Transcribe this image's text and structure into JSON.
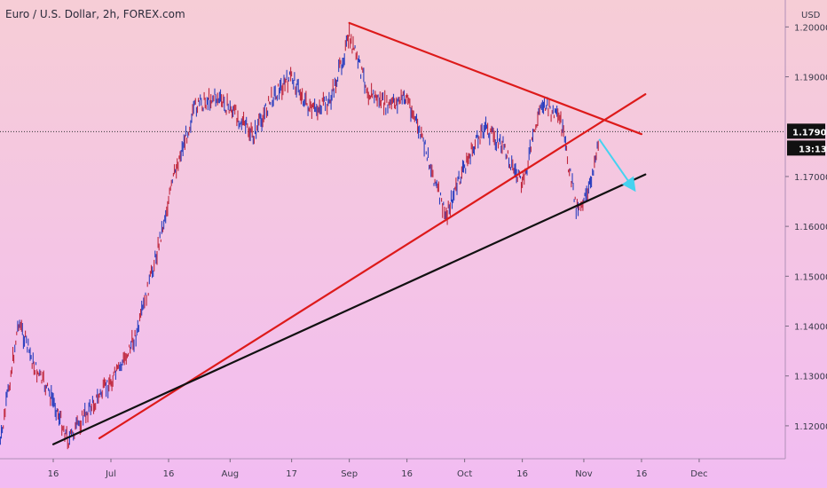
{
  "chart_data": {
    "type": "line",
    "title": "Euro / U.S. Dollar, 2h, FOREX.com",
    "currency": "USD",
    "x_ticks": [
      "16",
      "Jul",
      "16",
      "Aug",
      "17",
      "Sep",
      "16",
      "Oct",
      "16",
      "Nov",
      "16",
      "Dec"
    ],
    "y_ticks": [
      "1.20000",
      "1.19000",
      "1.17900",
      "1.17000",
      "1.16000",
      "1.15000",
      "1.14000",
      "1.13000",
      "1.12000"
    ],
    "ylim": [
      1.1134,
      1.2054
    ],
    "price_level": "1.17900",
    "countdown": "13:13",
    "grid": false,
    "series": [
      {
        "x": [
          "Jun 02",
          "Jun 07",
          "Jun 11",
          "Jun 16",
          "Jun 20",
          "Jun 24",
          "Jun 28",
          "Jul 03",
          "Jul 08",
          "Jul 13",
          "Jul 18",
          "Jul 23",
          "Jul 28",
          "Aug 02",
          "Aug 07",
          "Aug 12",
          "Aug 17",
          "Aug 22",
          "Aug 27",
          "Sep 01",
          "Sep 06",
          "Sep 11",
          "Sep 16",
          "Sep 21",
          "Sep 26",
          "Oct 01",
          "Oct 06",
          "Oct 11",
          "Oct 16",
          "Oct 21",
          "Oct 26",
          "Oct 30",
          "Nov 02",
          "Nov 05"
        ],
        "values": [
          1.115,
          1.141,
          1.132,
          1.125,
          1.117,
          1.122,
          1.126,
          1.131,
          1.139,
          1.155,
          1.172,
          1.184,
          1.186,
          1.183,
          1.178,
          1.186,
          1.19,
          1.183,
          1.185,
          1.198,
          1.187,
          1.184,
          1.186,
          1.175,
          1.162,
          1.172,
          1.18,
          1.176,
          1.168,
          1.185,
          1.181,
          1.164,
          1.166,
          1.178
        ]
      }
    ],
    "lines": [
      {
        "from": [
          "Sep 01",
          1.2008
        ],
        "to": [
          "Nov 16",
          1.1785
        ],
        "color": "#dd1a1a"
      },
      {
        "from": [
          "Jun 28",
          1.1175
        ],
        "to": [
          "Nov 17",
          1.1865
        ],
        "color": "#dd1a1a"
      },
      {
        "from": [
          "Jun 16",
          1.1163
        ],
        "to": [
          "Nov 17",
          1.1704
        ],
        "color": "#111111"
      }
    ],
    "arrow": {
      "from": [
        "Nov 05",
        1.1775
      ],
      "to": [
        "Nov 14",
        1.1675
      ],
      "color": "#45d2f0"
    }
  }
}
